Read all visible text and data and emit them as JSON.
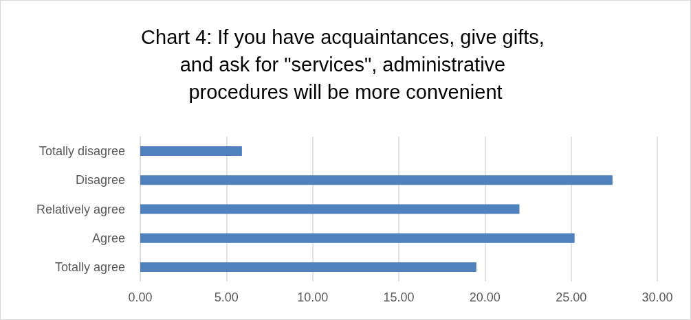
{
  "chart_data": {
    "type": "bar",
    "orientation": "horizontal",
    "title": "Chart 4: If you have acquaintances, give gifts, and ask for \"services\", administrative procedures will be more convenient",
    "categories": [
      "Totally disagree",
      "Disagree",
      "Relatively agree",
      "Agree",
      "Totally agree"
    ],
    "values": [
      5.9,
      27.4,
      22.0,
      25.2,
      19.5
    ],
    "color": "#4f81bd",
    "xlim": [
      0,
      30
    ],
    "xticks": [
      {
        "value": 0,
        "label": "0.00"
      },
      {
        "value": 5,
        "label": "5.00"
      },
      {
        "value": 10,
        "label": "10.00"
      },
      {
        "value": 15,
        "label": "15.00"
      },
      {
        "value": 20,
        "label": "20.00"
      },
      {
        "value": 25,
        "label": "25.00"
      },
      {
        "value": 30,
        "label": "30.00"
      }
    ],
    "grid": "x"
  }
}
